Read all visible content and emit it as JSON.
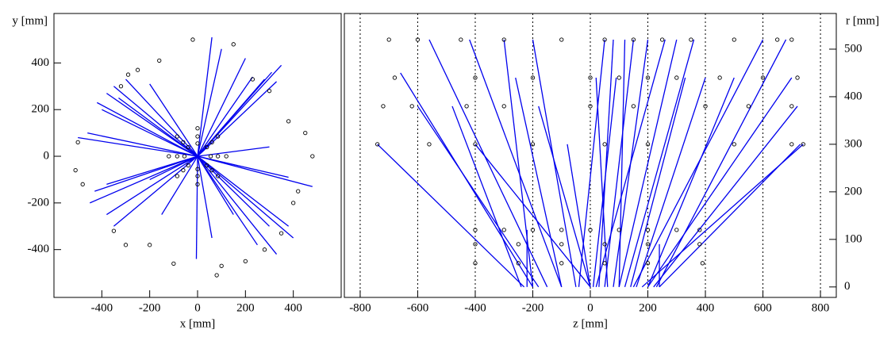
{
  "chart_data": [
    {
      "type": "scatter",
      "x_label": "x [mm]",
      "y_label": "y [mm]",
      "xlim": [
        -600,
        600
      ],
      "ylim": [
        -605,
        612
      ],
      "xticks": [
        -400,
        -200,
        0,
        200,
        400
      ],
      "yticks": [
        -400,
        -200,
        0,
        200,
        400
      ],
      "xgrid": false,
      "y_axis": "left",
      "track_color": "#0000ee",
      "hit_color": "#000000",
      "tracks": [
        {
          "x": [
            0,
            -380
          ],
          "y": [
            0,
            270
          ]
        },
        {
          "x": [
            0,
            -350
          ],
          "y": [
            0,
            300
          ]
        },
        {
          "x": [
            0,
            -300
          ],
          "y": [
            0,
            330
          ]
        },
        {
          "x": [
            0,
            -420
          ],
          "y": [
            0,
            230
          ]
        },
        {
          "x": [
            0,
            -400
          ],
          "y": [
            0,
            200
          ]
        },
        {
          "x": [
            0,
            -330
          ],
          "y": [
            0,
            250
          ]
        },
        {
          "x": [
            0,
            -460
          ],
          "y": [
            0,
            100
          ]
        },
        {
          "x": [
            0,
            -500
          ],
          "y": [
            0,
            80
          ]
        },
        {
          "x": [
            0,
            -430
          ],
          "y": [
            0,
            -150
          ]
        },
        {
          "x": [
            0,
            -450
          ],
          "y": [
            0,
            -200
          ]
        },
        {
          "x": [
            0,
            -380
          ],
          "y": [
            0,
            -250
          ]
        },
        {
          "x": [
            0,
            -350
          ],
          "y": [
            0,
            -300
          ]
        },
        {
          "x": [
            0,
            -150
          ],
          "y": [
            0,
            -250
          ]
        },
        {
          "x": [
            0,
            -5
          ],
          "y": [
            0,
            -440
          ]
        },
        {
          "x": [
            0,
            60
          ],
          "y": [
            0,
            -350
          ]
        },
        {
          "x": [
            0,
            150
          ],
          "y": [
            0,
            -250
          ]
        },
        {
          "x": [
            0,
            250
          ],
          "y": [
            0,
            -380
          ]
        },
        {
          "x": [
            0,
            330
          ],
          "y": [
            0,
            -420
          ]
        },
        {
          "x": [
            0,
            300
          ],
          "y": [
            0,
            -300
          ]
        },
        {
          "x": [
            0,
            380
          ],
          "y": [
            0,
            -300
          ]
        },
        {
          "x": [
            0,
            400
          ],
          "y": [
            0,
            -350
          ]
        },
        {
          "x": [
            0,
            480
          ],
          "y": [
            0,
            -130
          ]
        },
        {
          "x": [
            0,
            380
          ],
          "y": [
            0,
            -90
          ]
        },
        {
          "x": [
            0,
            300
          ],
          "y": [
            0,
            40
          ]
        },
        {
          "x": [
            0,
            330
          ],
          "y": [
            0,
            320
          ]
        },
        {
          "x": [
            0,
            280
          ],
          "y": [
            0,
            330
          ]
        },
        {
          "x": [
            0,
            200
          ],
          "y": [
            0,
            420
          ]
        },
        {
          "x": [
            0,
            100
          ],
          "y": [
            0,
            460
          ]
        },
        {
          "x": [
            0,
            60
          ],
          "y": [
            0,
            510
          ]
        },
        {
          "x": [
            0,
            230
          ],
          "y": [
            0,
            340
          ]
        },
        {
          "x": [
            0,
            -200
          ],
          "y": [
            0,
            -100
          ]
        },
        {
          "x": [
            0,
            -380
          ],
          "y": [
            0,
            -120
          ]
        },
        {
          "x": [
            0,
            -200
          ],
          "y": [
            0,
            310
          ]
        },
        {
          "x": [
            0,
            310
          ],
          "y": [
            0,
            360
          ]
        },
        {
          "x": [
            0,
            350
          ],
          "y": [
            0,
            390
          ]
        }
      ],
      "hits": {
        "x": [
          55,
          39,
          0,
          -39,
          -55,
          -39,
          0,
          39,
          85,
          60,
          0,
          -60,
          -85,
          -60,
          0,
          60,
          120,
          85,
          0,
          -85,
          -120,
          -85,
          0,
          85,
          -250,
          -290,
          -320,
          -160,
          230,
          300,
          380,
          400,
          350,
          -500,
          -510,
          -480,
          -200,
          -100,
          100,
          200,
          280,
          -300,
          -350,
          450,
          480,
          420,
          -20,
          80,
          150
        ],
        "y": [
          0,
          39,
          55,
          39,
          0,
          -39,
          -55,
          -39,
          0,
          60,
          85,
          60,
          0,
          -60,
          -85,
          -60,
          0,
          85,
          120,
          85,
          0,
          -85,
          -120,
          -85,
          370,
          350,
          300,
          410,
          330,
          280,
          150,
          -200,
          -330,
          60,
          -60,
          -120,
          -380,
          -460,
          -470,
          -450,
          -400,
          -380,
          -320,
          100,
          0,
          -150,
          500,
          -510,
          480
        ]
      }
    },
    {
      "type": "scatter",
      "x_label": "z [mm]",
      "y_label": "r [mm]",
      "xlim": [
        -855,
        855
      ],
      "ylim": [
        -22,
        575
      ],
      "xticks": [
        -800,
        -600,
        -400,
        -200,
        0,
        200,
        400,
        600,
        800
      ],
      "yticks": [
        0,
        100,
        200,
        300,
        400,
        500
      ],
      "xgrid": true,
      "y_axis": "right",
      "track_color": "#0000ee",
      "hit_color": "#000000",
      "tracks": [
        {
          "x": [
            -230,
            -740
          ],
          "y": [
            0,
            300
          ]
        },
        {
          "x": [
            -200,
            -660
          ],
          "y": [
            0,
            450
          ]
        },
        {
          "x": [
            -150,
            -560
          ],
          "y": [
            0,
            520
          ]
        },
        {
          "x": [
            -100,
            -420
          ],
          "y": [
            0,
            520
          ]
        },
        {
          "x": [
            -50,
            -200
          ],
          "y": [
            0,
            520
          ]
        },
        {
          "x": [
            0,
            -180
          ],
          "y": [
            0,
            380
          ]
        },
        {
          "x": [
            0,
            -400
          ],
          "y": [
            0,
            300
          ]
        },
        {
          "x": [
            30,
            80
          ],
          "y": [
            0,
            520
          ]
        },
        {
          "x": [
            50,
            150
          ],
          "y": [
            0,
            520
          ]
        },
        {
          "x": [
            80,
            200
          ],
          "y": [
            0,
            520
          ]
        },
        {
          "x": [
            100,
            300
          ],
          "y": [
            0,
            520
          ]
        },
        {
          "x": [
            120,
            360
          ],
          "y": [
            0,
            520
          ]
        },
        {
          "x": [
            150,
            600
          ],
          "y": [
            0,
            520
          ]
        },
        {
          "x": [
            180,
            740
          ],
          "y": [
            0,
            300
          ]
        },
        {
          "x": [
            200,
            700
          ],
          "y": [
            0,
            440
          ]
        },
        {
          "x": [
            220,
            720
          ],
          "y": [
            0,
            380
          ]
        },
        {
          "x": [
            240,
            730
          ],
          "y": [
            0,
            300
          ]
        },
        {
          "x": [
            -240,
            -480
          ],
          "y": [
            0,
            380
          ]
        },
        {
          "x": [
            -100,
            -260
          ],
          "y": [
            0,
            440
          ]
        },
        {
          "x": [
            60,
            20
          ],
          "y": [
            0,
            440
          ]
        },
        {
          "x": [
            100,
            120
          ],
          "y": [
            0,
            520
          ]
        },
        {
          "x": [
            140,
            330
          ],
          "y": [
            0,
            440
          ]
        },
        {
          "x": [
            200,
            500
          ],
          "y": [
            0,
            440
          ]
        },
        {
          "x": [
            -200,
            -300
          ],
          "y": [
            0,
            520
          ]
        },
        {
          "x": [
            0,
            -80
          ],
          "y": [
            0,
            300
          ]
        },
        {
          "x": [
            20,
            260
          ],
          "y": [
            0,
            520
          ]
        },
        {
          "x": [
            230,
            680
          ],
          "y": [
            0,
            520
          ]
        },
        {
          "x": [
            -180,
            -600
          ],
          "y": [
            0,
            380
          ]
        },
        {
          "x": [
            10,
            90
          ],
          "y": [
            0,
            440
          ]
        },
        {
          "x": [
            160,
            400
          ],
          "y": [
            0,
            440
          ]
        },
        {
          "x": [
            -220,
            -220
          ],
          "y": [
            0,
            120
          ]
        },
        {
          "x": [
            240,
            240
          ],
          "y": [
            0,
            90
          ]
        },
        {
          "x": [
            -40,
            50
          ],
          "y": [
            0,
            520
          ]
        }
      ],
      "hits": {
        "x": [
          -700,
          -600,
          -450,
          -300,
          -100,
          50,
          150,
          250,
          350,
          500,
          650,
          700,
          -680,
          -400,
          -200,
          0,
          100,
          200,
          300,
          450,
          600,
          720,
          -720,
          -620,
          -430,
          -300,
          0,
          150,
          400,
          550,
          700,
          -740,
          -560,
          -400,
          -200,
          50,
          200,
          500,
          700,
          740,
          -400,
          -300,
          -200,
          -100,
          0,
          100,
          200,
          300,
          380,
          -400,
          -250,
          -100,
          50,
          200,
          380,
          -400,
          -250,
          -100,
          50,
          200,
          390
        ],
        "y": [
          520,
          520,
          520,
          520,
          520,
          520,
          520,
          520,
          520,
          520,
          520,
          520,
          440,
          440,
          440,
          440,
          440,
          440,
          440,
          440,
          440,
          440,
          380,
          380,
          380,
          380,
          380,
          380,
          380,
          380,
          380,
          300,
          300,
          300,
          300,
          300,
          300,
          300,
          300,
          300,
          120,
          120,
          120,
          120,
          120,
          120,
          120,
          120,
          120,
          90,
          90,
          90,
          90,
          90,
          90,
          50,
          50,
          50,
          50,
          50,
          50
        ]
      }
    }
  ]
}
